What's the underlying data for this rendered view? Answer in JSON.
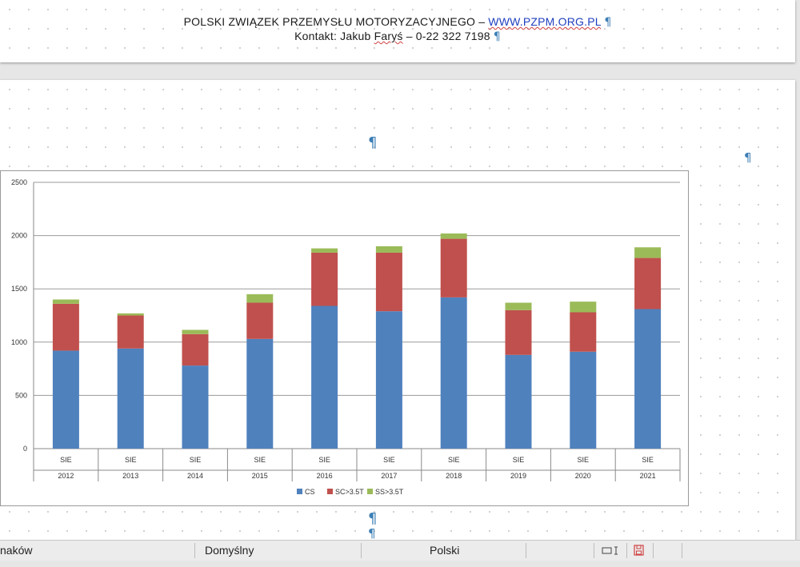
{
  "header": {
    "line1_text": "POLSKI ZWIĄZEK PRZEMYSŁU MOTORYZACYJNEGO – ",
    "line1_link": "WWW.PZPM.ORG.PL",
    "line2_prefix": "Kontakt: Jakub ",
    "line2_name": "Faryś",
    "line2_suffix": " – 0-22 322 7198",
    "pilcrow": "¶"
  },
  "status_bar": {
    "word_count_label": "naków",
    "page_style": "Domyślny",
    "language": "Polski",
    "colors": {
      "save_icon": "#d04040"
    }
  },
  "chart_data": {
    "type": "bar",
    "stacked": true,
    "categories": [
      "2012",
      "2013",
      "2014",
      "2015",
      "2016",
      "2017",
      "2018",
      "2019",
      "2020",
      "2021"
    ],
    "sub_labels": [
      "SIE",
      "SIE",
      "SIE",
      "SIE",
      "SIE",
      "SIE",
      "SIE",
      "SIE",
      "SIE",
      "SIE"
    ],
    "series": [
      {
        "name": "CS",
        "color": "#4f81bd",
        "values": [
          920,
          940,
          780,
          1030,
          1340,
          1290,
          1420,
          880,
          910,
          1310
        ]
      },
      {
        "name": "SC>3.5T",
        "color": "#c0504d",
        "values": [
          440,
          310,
          295,
          340,
          500,
          550,
          550,
          420,
          370,
          480
        ]
      },
      {
        "name": "SS>3.5T",
        "color": "#9bbb59",
        "values": [
          40,
          20,
          40,
          80,
          40,
          60,
          50,
          70,
          100,
          100
        ]
      }
    ],
    "ylim": [
      0,
      2500
    ],
    "yticks": [
      0,
      500,
      1000,
      1500,
      2000,
      2500
    ],
    "grid": true,
    "legend_position": "bottom",
    "title": "",
    "xlabel": "",
    "ylabel": ""
  }
}
